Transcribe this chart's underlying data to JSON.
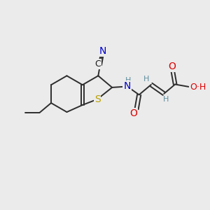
{
  "bg_color": "#ebebeb",
  "bond_color": "#2d2d2d",
  "bond_width": 1.4,
  "atom_colors": {
    "C": "#1a1a1a",
    "N": "#0000cc",
    "S": "#b8a000",
    "O": "#dd0000",
    "H": "#5f8fa0"
  },
  "font_size": 9,
  "figsize": [
    3.0,
    3.0
  ],
  "dpi": 100
}
